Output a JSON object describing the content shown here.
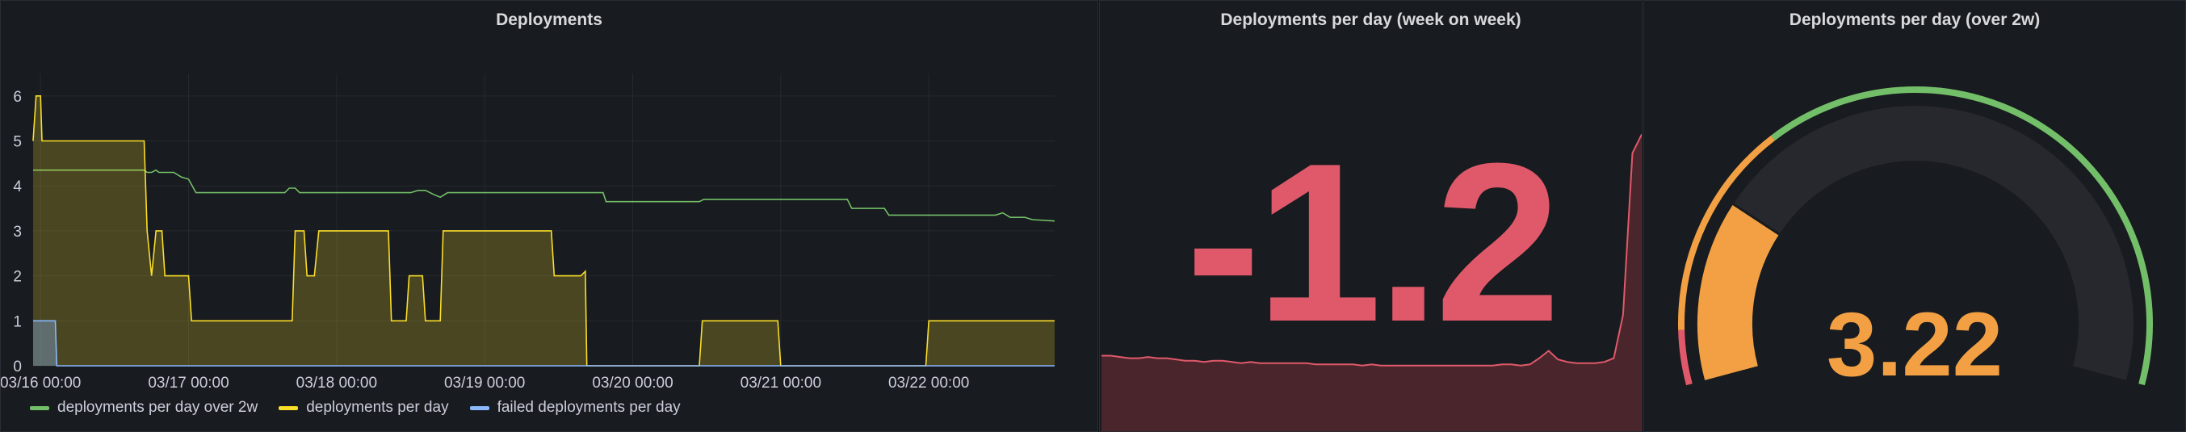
{
  "panels": {
    "deployments": {
      "title": "Deployments",
      "legend": [
        {
          "label": "deployments per day over 2w",
          "color": "#73bf69"
        },
        {
          "label": "deployments per day",
          "color": "#fade2a"
        },
        {
          "label": "failed deployments per day",
          "color": "#8ab8ff"
        }
      ]
    },
    "week_on_week": {
      "title": "Deployments per day (week on week)",
      "value": "-1.2",
      "color": "#e0596a"
    },
    "over_2w": {
      "title": "Deployments per day (over 2w)",
      "value": "3.22",
      "color": "#f2a043"
    }
  },
  "chart_data": [
    {
      "type": "line",
      "title": "Deployments",
      "x_ticks": [
        "03/16 00:00",
        "03/17 00:00",
        "03/18 00:00",
        "03/19 00:00",
        "03/20 00:00",
        "03/21 00:00",
        "03/22 00:00"
      ],
      "y_ticks": [
        "0",
        "1",
        "2",
        "3",
        "4",
        "5",
        "6"
      ],
      "ylim": [
        0,
        6.5
      ],
      "xlim": [
        -0.05,
        6.85
      ],
      "grid": true,
      "legend_position": "bottom-left",
      "series": [
        {
          "name": "deployments per day over 2w",
          "color": "#73bf69",
          "fill": false,
          "points": [
            [
              -0.05,
              4.35
            ],
            [
              0.7,
              4.35
            ],
            [
              0.72,
              4.3
            ],
            [
              0.75,
              4.3
            ],
            [
              0.78,
              4.35
            ],
            [
              0.8,
              4.3
            ],
            [
              0.9,
              4.3
            ],
            [
              0.95,
              4.2
            ],
            [
              1.0,
              4.15
            ],
            [
              1.05,
              3.85
            ],
            [
              1.65,
              3.85
            ],
            [
              1.68,
              3.95
            ],
            [
              1.72,
              3.95
            ],
            [
              1.75,
              3.85
            ],
            [
              2.5,
              3.85
            ],
            [
              2.55,
              3.9
            ],
            [
              2.6,
              3.9
            ],
            [
              2.65,
              3.82
            ],
            [
              2.7,
              3.75
            ],
            [
              2.75,
              3.85
            ],
            [
              3.8,
              3.85
            ],
            [
              3.82,
              3.65
            ],
            [
              4.45,
              3.65
            ],
            [
              4.48,
              3.7
            ],
            [
              5.45,
              3.7
            ],
            [
              5.48,
              3.5
            ],
            [
              5.7,
              3.5
            ],
            [
              5.73,
              3.35
            ],
            [
              6.45,
              3.35
            ],
            [
              6.5,
              3.4
            ],
            [
              6.55,
              3.3
            ],
            [
              6.65,
              3.3
            ],
            [
              6.7,
              3.25
            ],
            [
              6.85,
              3.22
            ]
          ]
        },
        {
          "name": "deployments per day",
          "color": "#fade2a",
          "fill": true,
          "points": [
            [
              -0.05,
              5
            ],
            [
              -0.03,
              6
            ],
            [
              0,
              6
            ],
            [
              0.01,
              5
            ],
            [
              0.7,
              5
            ],
            [
              0.72,
              3
            ],
            [
              0.75,
              2
            ],
            [
              0.78,
              3
            ],
            [
              0.82,
              3
            ],
            [
              0.84,
              2
            ],
            [
              1.0,
              2
            ],
            [
              1.02,
              1
            ],
            [
              1.7,
              1
            ],
            [
              1.72,
              3
            ],
            [
              1.78,
              3
            ],
            [
              1.8,
              2
            ],
            [
              1.85,
              2
            ],
            [
              1.88,
              3
            ],
            [
              2.35,
              3
            ],
            [
              2.37,
              1
            ],
            [
              2.47,
              1
            ],
            [
              2.49,
              2
            ],
            [
              2.58,
              2
            ],
            [
              2.6,
              1
            ],
            [
              2.7,
              1
            ],
            [
              2.72,
              3
            ],
            [
              3.45,
              3
            ],
            [
              3.47,
              2
            ],
            [
              3.65,
              2
            ],
            [
              3.68,
              2.1
            ],
            [
              3.69,
              0
            ],
            [
              4.45,
              0
            ],
            [
              4.47,
              1
            ],
            [
              4.98,
              1
            ],
            [
              5.0,
              0
            ],
            [
              5.98,
              0
            ],
            [
              6.0,
              1
            ],
            [
              6.85,
              1
            ]
          ]
        },
        {
          "name": "failed deployments per day",
          "color": "#8ab8ff",
          "fill": true,
          "points": [
            [
              -0.05,
              1
            ],
            [
              0.1,
              1
            ],
            [
              0.11,
              0
            ],
            [
              6.85,
              0
            ]
          ]
        }
      ]
    },
    {
      "type": "area",
      "title": "Deployments per day (week on week)",
      "values": [
        0.62,
        0.62,
        0.61,
        0.6,
        0.6,
        0.61,
        0.6,
        0.6,
        0.59,
        0.58,
        0.58,
        0.57,
        0.58,
        0.58,
        0.57,
        0.56,
        0.57,
        0.56,
        0.56,
        0.56,
        0.56,
        0.56,
        0.56,
        0.55,
        0.55,
        0.55,
        0.55,
        0.55,
        0.54,
        0.55,
        0.54,
        0.54,
        0.54,
        0.54,
        0.54,
        0.54,
        0.54,
        0.54,
        0.54,
        0.54,
        0.54,
        0.54,
        0.54,
        0.55,
        0.55,
        0.54,
        0.55,
        0.6,
        0.66,
        0.59,
        0.57,
        0.56,
        0.56,
        0.56,
        0.57,
        0.6,
        0.95,
        2.25,
        2.4
      ],
      "ylim": [
        0,
        2.5
      ]
    },
    {
      "type": "gauge",
      "title": "Deployments per day (over 2w)",
      "value": 3.22,
      "min": 0,
      "max": 14,
      "thresholds": [
        {
          "value": 0,
          "color": "#e0596a"
        },
        {
          "value": 0.9,
          "color": "#f2a043"
        },
        {
          "value": 4.5,
          "color": "#73bf69"
        }
      ]
    }
  ]
}
